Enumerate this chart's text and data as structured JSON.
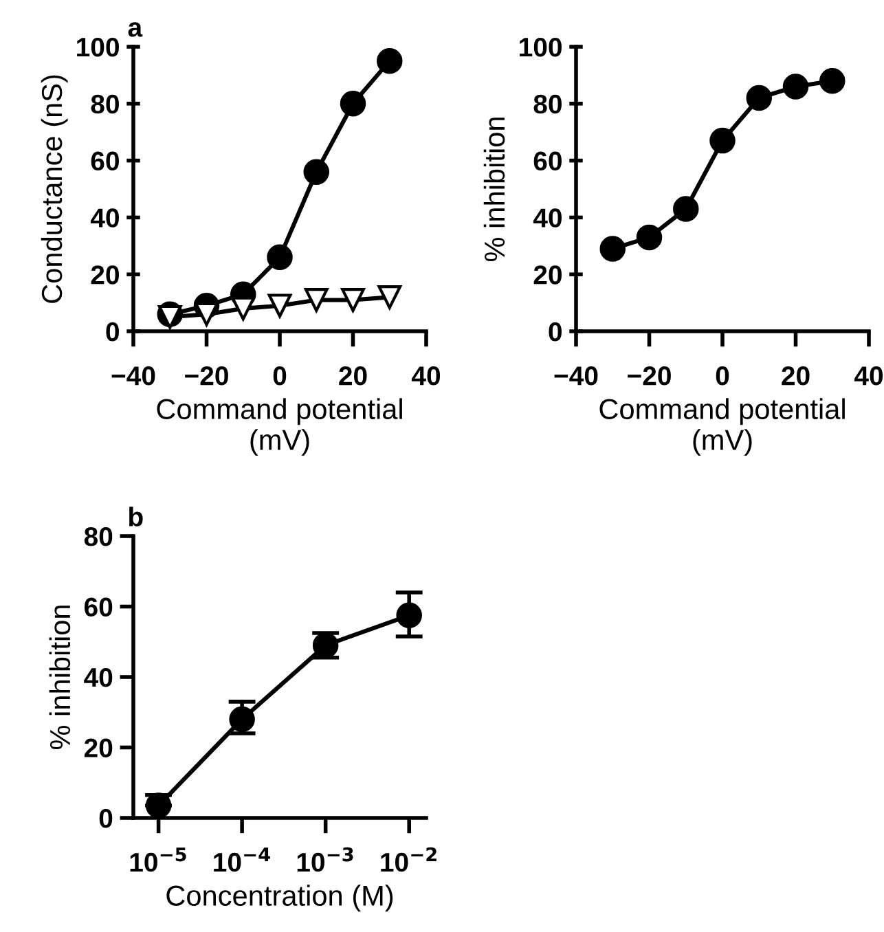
{
  "chart_data": [
    {
      "type": "line",
      "xlabel": "Command potential\n(mV)",
      "ylabel": "Conductance (nS)",
      "annotations": [
        "a"
      ],
      "line_style": "solid",
      "grid": false,
      "xlim": [
        -40,
        40
      ],
      "xticks": [
        -40,
        -20,
        0,
        20,
        40
      ],
      "ylim": [
        0,
        100
      ],
      "yticks": [
        0,
        20,
        40,
        60,
        80,
        100
      ],
      "series": [
        {
          "color": "#000000",
          "marker": "circle",
          "x": [
            -30,
            -20,
            -10,
            0,
            10,
            20,
            30
          ],
          "values": [
            6,
            9,
            13,
            26,
            56,
            80,
            95
          ]
        },
        {
          "color": "#000000",
          "marker": "triangle",
          "x": [
            -30,
            -20,
            -10,
            0,
            10,
            20,
            30
          ],
          "values": [
            5,
            6,
            8,
            9,
            11,
            11,
            12
          ]
        }
      ]
    },
    {
      "type": "line",
      "xlabel": "Command potential\n(mV)",
      "ylabel": "% inhibition",
      "line_style": "solid",
      "grid": false,
      "xlim": [
        -40,
        40
      ],
      "xticks": [
        -40,
        -20,
        0,
        20,
        40
      ],
      "ylim": [
        0,
        100
      ],
      "yticks": [
        0,
        20,
        40,
        60,
        80,
        100
      ],
      "series": [
        {
          "color": "#000000",
          "marker": "circle",
          "x": [
            -30,
            -20,
            -10,
            0,
            10,
            20,
            30
          ],
          "values": [
            29,
            33,
            43,
            67,
            82,
            86,
            88
          ]
        }
      ]
    },
    {
      "type": "line",
      "xlabel": "Concentration (M)",
      "ylabel": "% inhibition",
      "annotations": [
        "b"
      ],
      "line_style": "solid",
      "grid": false,
      "log": "x",
      "xlim": [
        5e-06,
        0.016
      ],
      "xticks": [
        {
          "value": 1e-05,
          "label": "10$^{−5}$"
        },
        {
          "value": 0.0001,
          "label": "10$^{−4}$"
        },
        {
          "value": 0.001,
          "label": "10$^{−3}$"
        },
        {
          "value": 0.01,
          "label": "10$^{−2}$"
        }
      ],
      "ylim": [
        0,
        80
      ],
      "yticks": [
        0,
        20,
        40,
        60,
        80
      ],
      "series": [
        {
          "color": "#000000",
          "marker": "circle",
          "x": [
            1e-05,
            0.0001,
            0.001,
            0.01
          ],
          "values": [
            3.5,
            28,
            49,
            57.5
          ],
          "errors": [
            [
              3.5,
              6.5
            ],
            [
              24,
              33
            ],
            [
              45.5,
              52.5
            ],
            [
              51.5,
              64
            ]
          ]
        }
      ]
    }
  ]
}
